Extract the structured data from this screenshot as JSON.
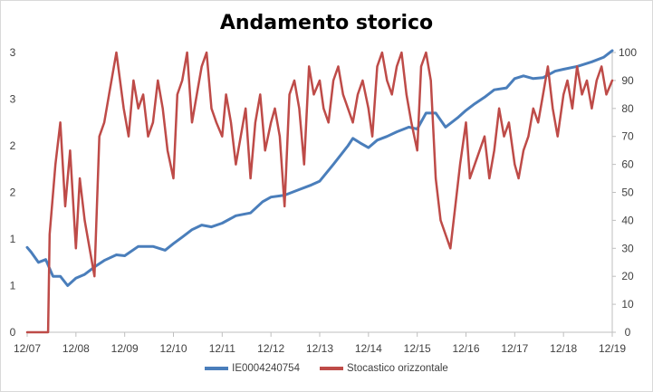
{
  "chart_data": {
    "type": "line",
    "title": "Andamento storico",
    "x_ticks": [
      "12/07",
      "12/08",
      "12/09",
      "12/10",
      "12/11",
      "12/12",
      "12/13",
      "12/14",
      "12/15",
      "12/16",
      "12/17",
      "12/18",
      "12/19"
    ],
    "y_left_ticks": [
      "0",
      "1",
      "1",
      "2",
      "2",
      "3",
      "3"
    ],
    "y_right_ticks": [
      "0",
      "10",
      "20",
      "30",
      "40",
      "50",
      "60",
      "70",
      "80",
      "90",
      "100"
    ],
    "y_left_range": [
      0,
      3
    ],
    "y_right_range": [
      0,
      100
    ],
    "grid": false,
    "legend_position": "bottom",
    "series": [
      {
        "name": "IE0004240754",
        "axis": "left",
        "color": "#4a7ebb",
        "x": [
          2007.92,
          2008.0,
          2008.15,
          2008.3,
          2008.45,
          2008.6,
          2008.75,
          2008.92,
          2009.1,
          2009.3,
          2009.5,
          2009.75,
          2009.92,
          2010.2,
          2010.5,
          2010.75,
          2010.92,
          2011.1,
          2011.3,
          2011.5,
          2011.7,
          2011.92,
          2012.2,
          2012.5,
          2012.75,
          2012.92,
          2013.2,
          2013.5,
          2013.75,
          2013.92,
          2014.2,
          2014.5,
          2014.6,
          2014.75,
          2014.92,
          2015.1,
          2015.3,
          2015.5,
          2015.75,
          2015.92,
          2016.1,
          2016.3,
          2016.5,
          2016.75,
          2016.92,
          2017.1,
          2017.3,
          2017.5,
          2017.75,
          2017.92,
          2018.1,
          2018.3,
          2018.5,
          2018.75,
          2018.92,
          2019.2,
          2019.5,
          2019.75,
          2019.92
        ],
        "values": [
          0.91,
          0.86,
          0.75,
          0.78,
          0.6,
          0.6,
          0.5,
          0.58,
          0.62,
          0.7,
          0.77,
          0.83,
          0.82,
          0.92,
          0.92,
          0.88,
          0.95,
          1.02,
          1.1,
          1.15,
          1.13,
          1.17,
          1.25,
          1.28,
          1.4,
          1.45,
          1.47,
          1.53,
          1.58,
          1.62,
          1.8,
          2.0,
          2.08,
          2.03,
          1.98,
          2.06,
          2.1,
          2.15,
          2.2,
          2.18,
          2.35,
          2.35,
          2.2,
          2.3,
          2.38,
          2.45,
          2.52,
          2.6,
          2.62,
          2.72,
          2.75,
          2.72,
          2.73,
          2.8,
          2.82,
          2.85,
          2.9,
          2.95,
          3.02
        ]
      },
      {
        "name": "Stocastico orizzontale",
        "axis": "right",
        "color": "#be4b48",
        "x": [
          2007.92,
          2008.2,
          2008.35,
          2008.38,
          2008.5,
          2008.6,
          2008.7,
          2008.8,
          2008.92,
          2009.0,
          2009.1,
          2009.2,
          2009.3,
          2009.4,
          2009.5,
          2009.6,
          2009.7,
          2009.75,
          2009.9,
          2010.0,
          2010.1,
          2010.2,
          2010.3,
          2010.4,
          2010.5,
          2010.6,
          2010.7,
          2010.8,
          2010.92,
          2011.0,
          2011.1,
          2011.2,
          2011.3,
          2011.4,
          2011.5,
          2011.6,
          2011.7,
          2011.8,
          2011.92,
          2012.0,
          2012.1,
          2012.2,
          2012.3,
          2012.4,
          2012.5,
          2012.6,
          2012.7,
          2012.8,
          2012.92,
          2013.0,
          2013.1,
          2013.2,
          2013.3,
          2013.4,
          2013.5,
          2013.6,
          2013.7,
          2013.8,
          2013.92,
          2014.0,
          2014.1,
          2014.2,
          2014.3,
          2014.4,
          2014.5,
          2014.6,
          2014.7,
          2014.8,
          2014.92,
          2015.0,
          2015.1,
          2015.2,
          2015.3,
          2015.4,
          2015.5,
          2015.6,
          2015.7,
          2015.8,
          2015.92,
          2016.0,
          2016.1,
          2016.2,
          2016.3,
          2016.4,
          2016.5,
          2016.6,
          2016.7,
          2016.8,
          2016.92,
          2017.0,
          2017.1,
          2017.2,
          2017.3,
          2017.4,
          2017.5,
          2017.6,
          2017.7,
          2017.8,
          2017.92,
          2018.0,
          2018.1,
          2018.2,
          2018.3,
          2018.4,
          2018.5,
          2018.6,
          2018.7,
          2018.8,
          2018.92,
          2019.0,
          2019.1,
          2019.2,
          2019.3,
          2019.4,
          2019.5,
          2019.6,
          2019.7,
          2019.8,
          2019.92
        ],
        "values": [
          0,
          0,
          0,
          35,
          60,
          75,
          45,
          65,
          30,
          55,
          40,
          30,
          20,
          70,
          75,
          85,
          95,
          100,
          80,
          70,
          90,
          80,
          85,
          70,
          75,
          90,
          80,
          65,
          55,
          85,
          90,
          100,
          75,
          85,
          95,
          100,
          80,
          75,
          70,
          85,
          75,
          60,
          70,
          80,
          55,
          75,
          85,
          65,
          75,
          80,
          70,
          45,
          85,
          90,
          80,
          60,
          95,
          85,
          90,
          80,
          75,
          90,
          95,
          85,
          80,
          75,
          85,
          90,
          80,
          70,
          95,
          100,
          90,
          85,
          95,
          100,
          85,
          75,
          65,
          95,
          100,
          90,
          55,
          40,
          35,
          30,
          45,
          60,
          75,
          55,
          60,
          65,
          70,
          55,
          65,
          80,
          70,
          75,
          60,
          55,
          65,
          70,
          80,
          75,
          85,
          95,
          80,
          70,
          85,
          90,
          80,
          95,
          85,
          90,
          80,
          90,
          95,
          85,
          90
        ]
      }
    ]
  }
}
